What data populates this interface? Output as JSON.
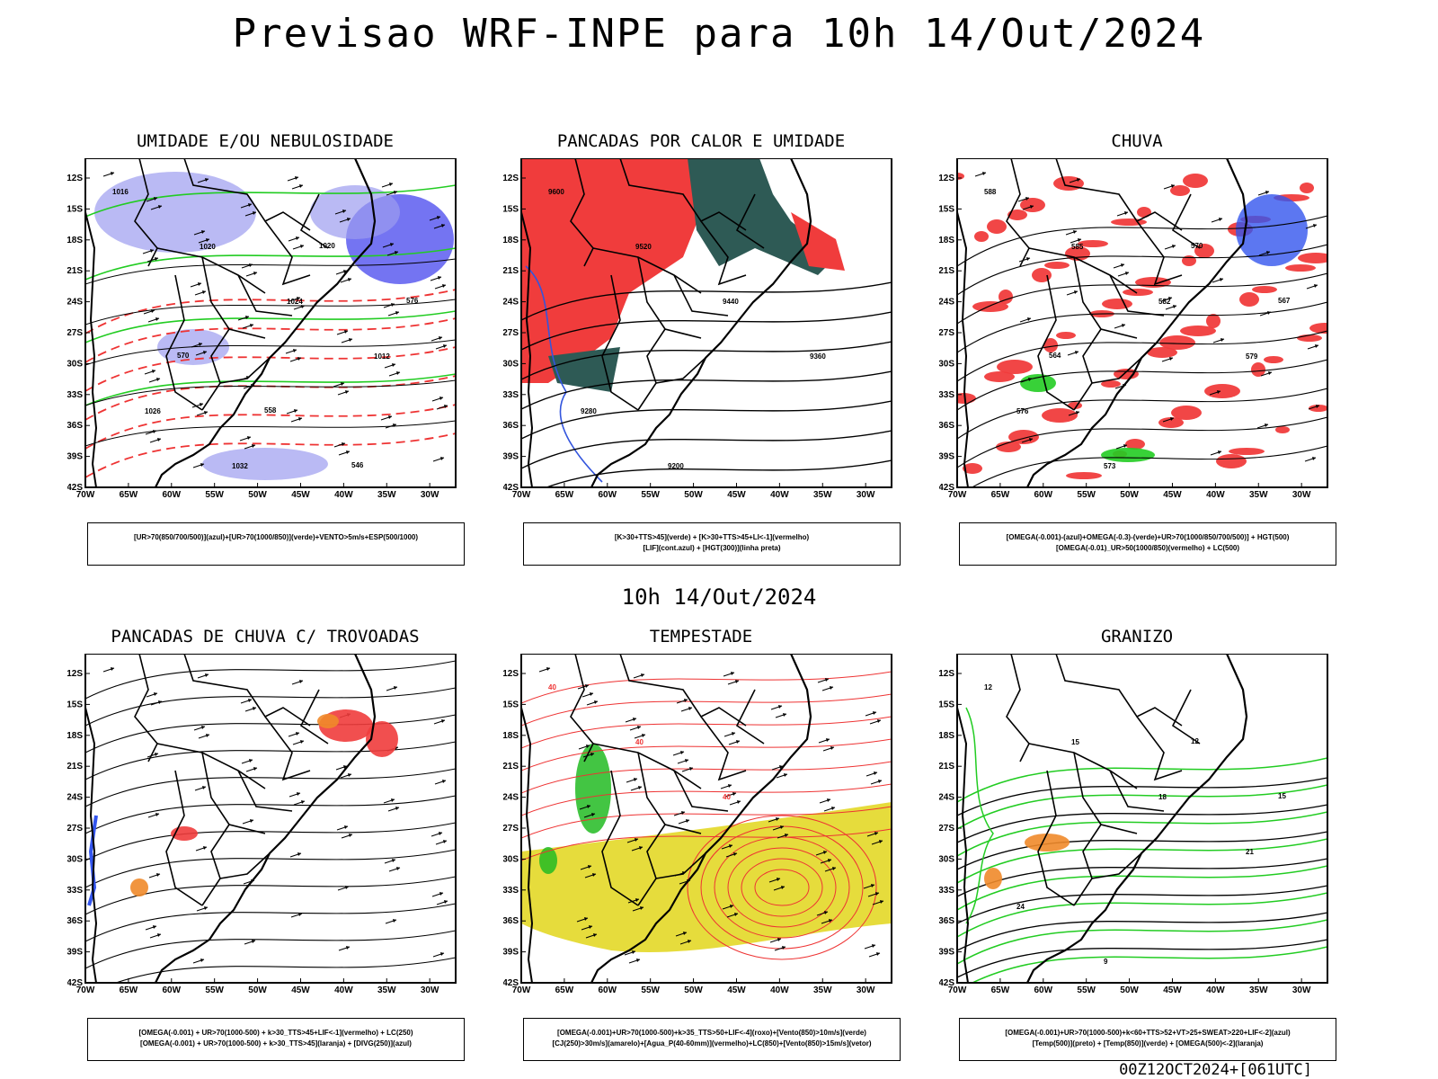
{
  "header": {
    "title": "Previsao WRF-INPE  para 10h 14/Out/2024",
    "middle_time": "10h 14/Out/2024",
    "run_stamp": "00Z12OCT2024+[061UTC]"
  },
  "axes": {
    "lat_labels": [
      "12S",
      "15S",
      "18S",
      "21S",
      "24S",
      "27S",
      "30S",
      "33S",
      "36S",
      "39S",
      "42S"
    ],
    "lon_labels": [
      "70W",
      "65W",
      "60W",
      "55W",
      "50W",
      "45W",
      "40W",
      "35W",
      "30W"
    ]
  },
  "panels": [
    {
      "id": "umidade",
      "title": "UMIDADE E/OU NEBULOSIDADE",
      "legend_lines": [
        "[UR>70(850/700/500)](azul)+[UR>70(1000/850)](verde)+VENTO>5m/s+ESP(500/1000)"
      ],
      "colors": {
        "fill_a": "#9c9cf0",
        "fill_b": "#4646ee",
        "contour_green": "#22cc22",
        "contour_red": "#ee3333"
      },
      "labels": [
        "1016",
        "1020",
        "1024",
        "1012",
        "1026",
        "1032",
        "1020",
        "576",
        "570",
        "558",
        "546"
      ]
    },
    {
      "id": "pancadas-calor",
      "title": "PANCADAS POR CALOR E UMIDADE",
      "legend_lines": [
        "[K>30+TTS>45](verde) + [K>30+TTS>45+LI<-1](vermelho)",
        "[LIF](cont.azul) + [HGT(300)](linha preta)"
      ],
      "colors": {
        "fill_red": "#f03c3c",
        "fill_dark": "#2e5a55",
        "contour_blue": "#3355dd"
      },
      "labels": [
        "9600",
        "9520",
        "9440",
        "9360",
        "9280",
        "9200"
      ]
    },
    {
      "id": "chuva",
      "title": "CHUVA",
      "legend_lines": [
        "[OMEGA(-0.001)-(azul)+OMEGA(-0.3)-(verde)+UR>70(1000/850/700/500)] + HGT(500)",
        "[OMEGA(-0.01)_UR>50(1000/850)(vermelho) + LC(500)"
      ],
      "colors": {
        "fill_red": "#f03c3c",
        "fill_blue": "#3355ee",
        "fill_green": "#22cc22"
      },
      "labels": [
        "588",
        "585",
        "582",
        "579",
        "576",
        "573",
        "570",
        "567",
        "564"
      ]
    },
    {
      "id": "pancadas-trovoadas",
      "title": "PANCADAS DE CHUVA C/ TROVOADAS",
      "legend_lines": [
        "[OMEGA(-0.001) + UR>70(1000-500) + k>30_TTS>45+LIF<-1](vermelho) + LC(250)",
        "[OMEGA(-0.001) + UR>70(1000-500) + k>30_TTS>45](laranja) + [DIVG(250)](azul)"
      ],
      "colors": {
        "fill_red": "#f03c3c",
        "fill_orange": "#f08a2a",
        "fill_blue": "#3355ee"
      },
      "labels": []
    },
    {
      "id": "tempestade",
      "title": "TEMPESTADE",
      "legend_lines": [
        "[OMEGA(-0.001)+UR>70(1000-500)+k>35_TTS>50+LIF<-4](roxo)+[Vento(850)>10m/s](verde)",
        "[CJ(250)>30m/s](amarelo)+[Agua_P(40-60mm)](vermelho)+LC(850)+[Vento(850)>15m/s](vetor)"
      ],
      "colors": {
        "fill_yellow": "#e6dc3c",
        "fill_green": "#22bb22",
        "contour_red": "#ee3333"
      },
      "labels": [
        "40",
        "40",
        "40"
      ]
    },
    {
      "id": "granizo",
      "title": "GRANIZO",
      "legend_lines": [
        "[OMEGA(-0.001)+UR>70(1000-500)+k<60+TTS>52+VT>25+SWEAT>220+LIF<-2](azul)",
        "[Temp(500)](preto) + [Temp(850)](verde) + [OMEGA(500)<-2](laranja)"
      ],
      "colors": {
        "contour_green": "#22cc22",
        "fill_orange": "#f08a2a"
      },
      "labels": [
        "12",
        "15",
        "18",
        "21",
        "24",
        "9",
        "12",
        "15"
      ]
    }
  ]
}
